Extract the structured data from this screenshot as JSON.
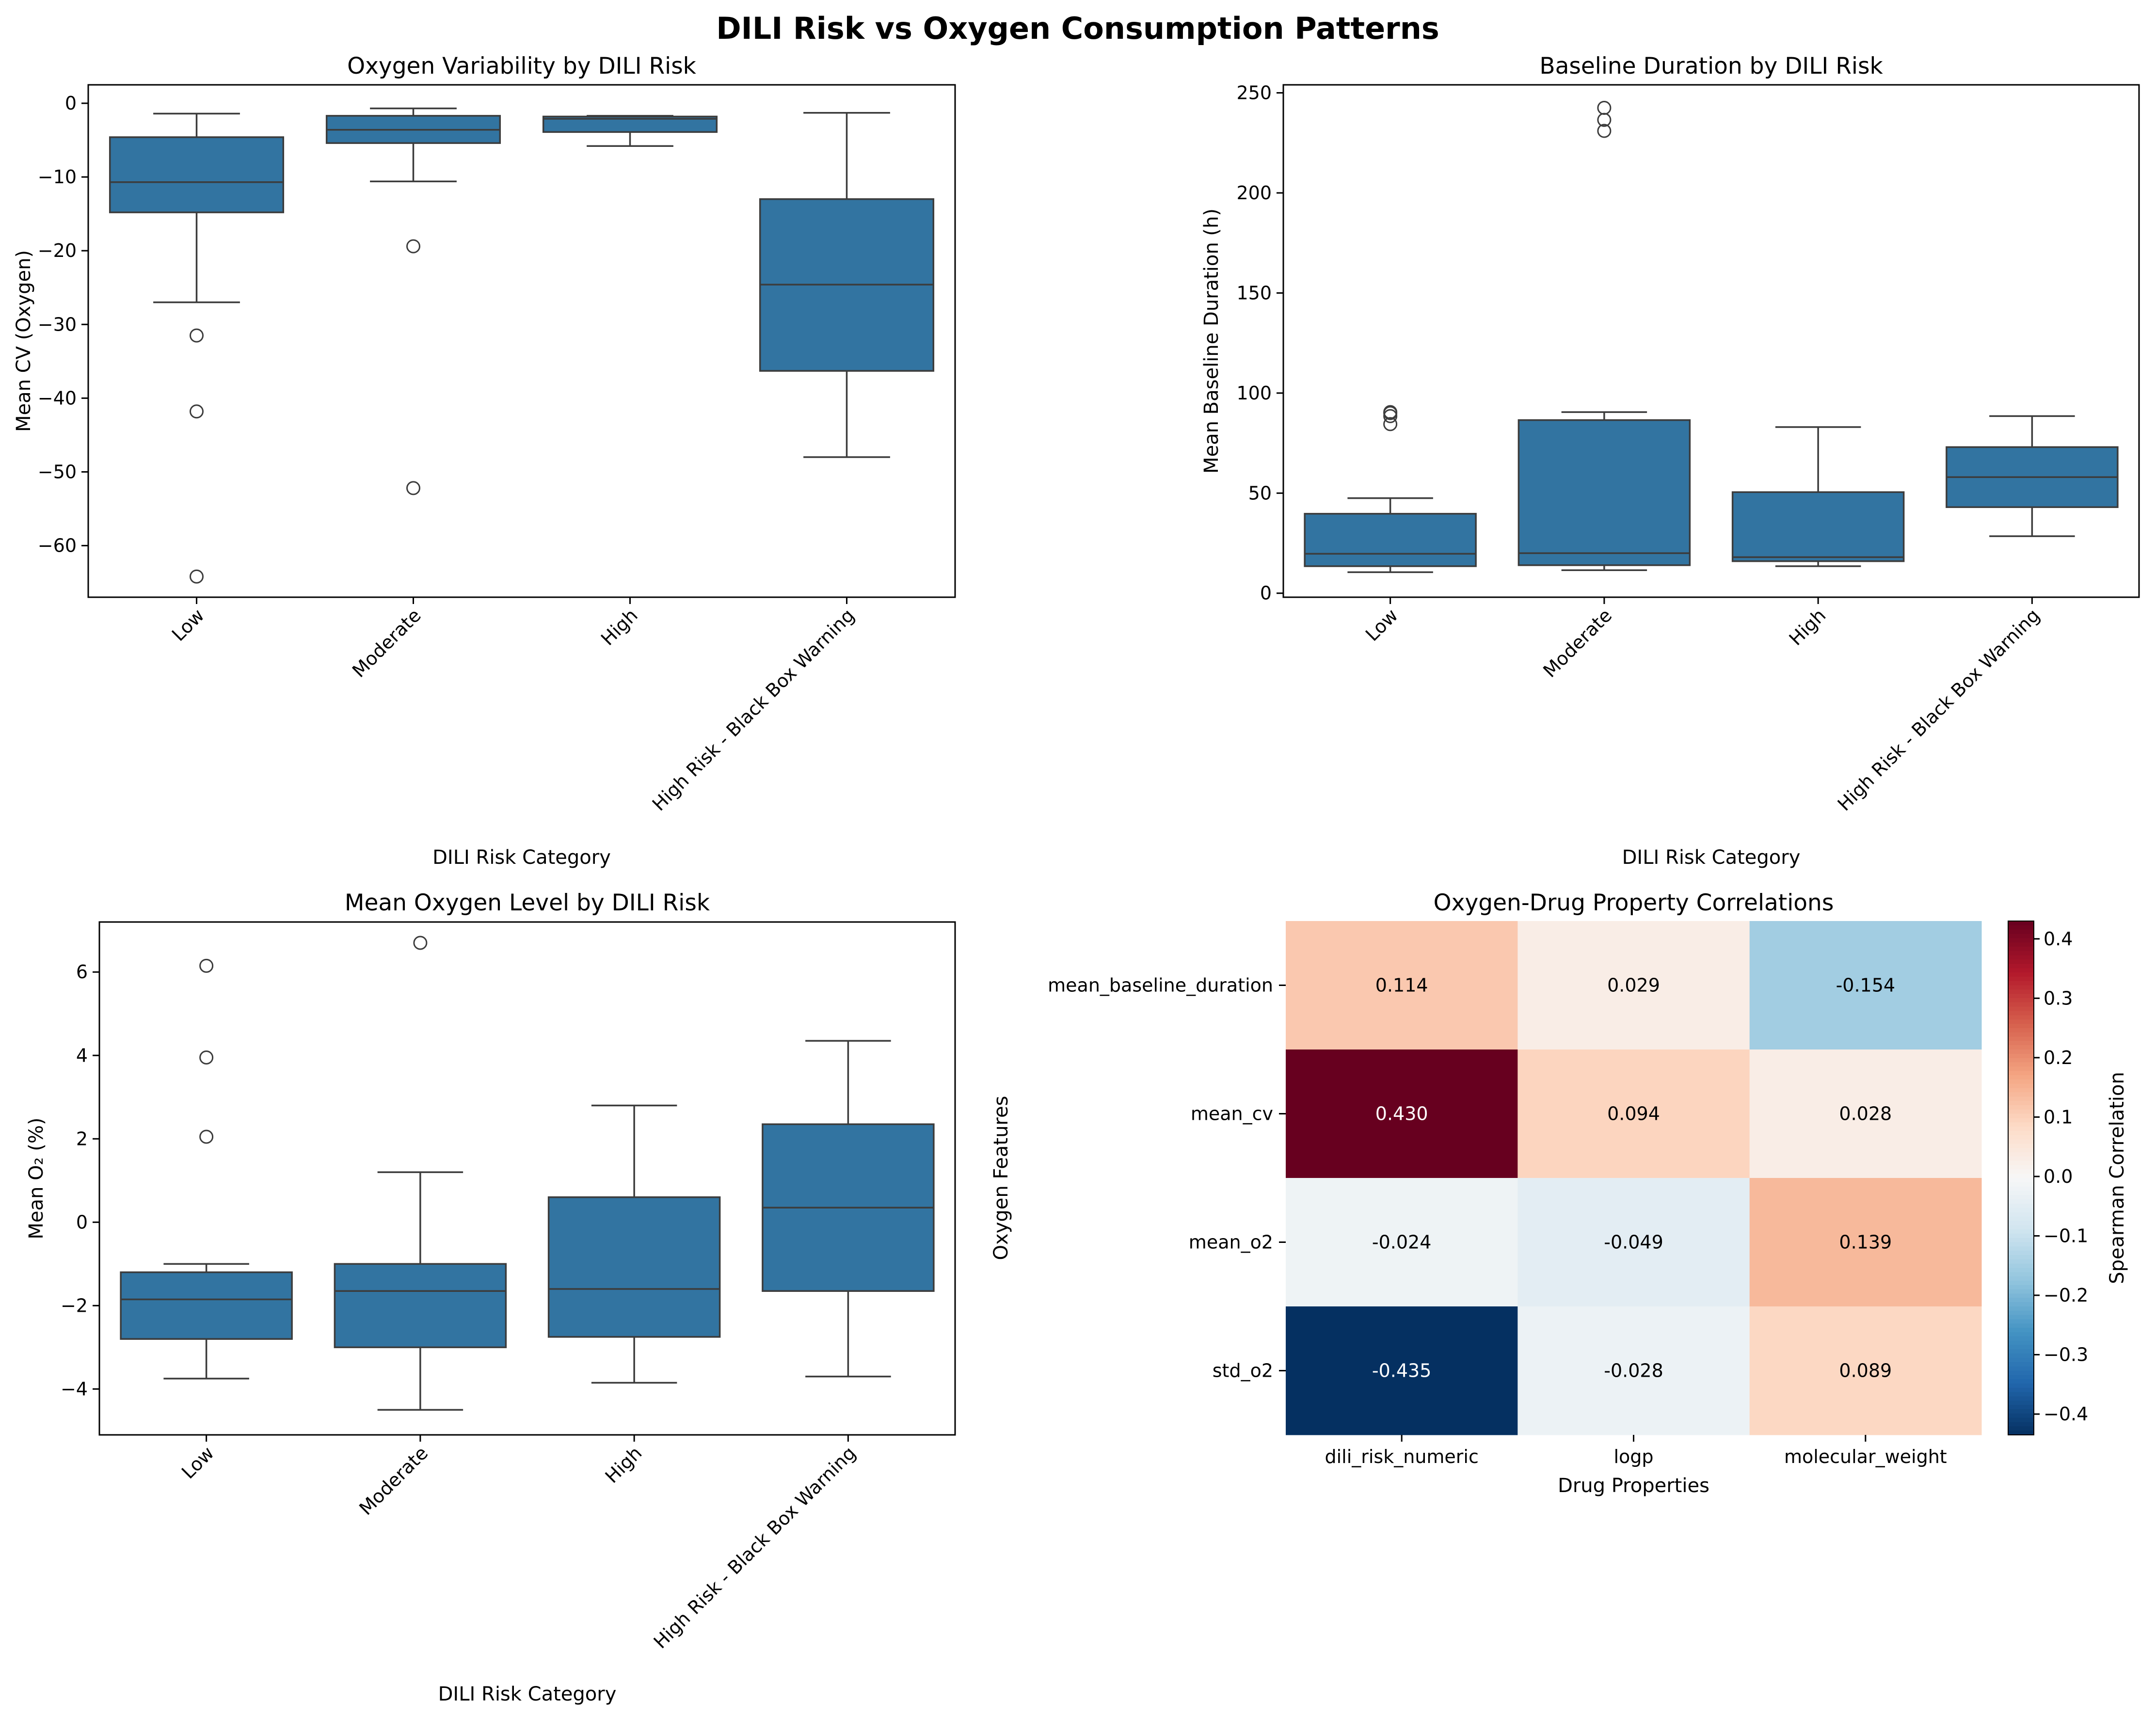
{
  "title": "DILI Risk vs Oxygen Consumption Patterns",
  "colors": {
    "box_fill": "#3274a1",
    "line": "#3c3c3c",
    "text": "#000000"
  },
  "chart_data": [
    {
      "type": "box",
      "title": "Oxygen Variability by DILI Risk",
      "xlabel": "DILI Risk Category",
      "ylabel": "Mean CV (Oxygen)",
      "ylim": [
        -67,
        2.5
      ],
      "yticks": [
        0,
        -10,
        -20,
        -30,
        -40,
        -50,
        -60
      ],
      "categories": [
        "Low",
        "Moderate",
        "High",
        "High Risk - Black Box Warning"
      ],
      "boxes": [
        {
          "whislo": -27.0,
          "q1": -14.8,
          "med": -10.7,
          "q3": -4.6,
          "whishi": -1.4,
          "fliers": [
            -31.5,
            -41.8,
            -64.2
          ]
        },
        {
          "whislo": -10.6,
          "q1": -5.4,
          "med": -3.6,
          "q3": -1.7,
          "whishi": -0.7,
          "fliers": [
            -19.4,
            -52.2
          ]
        },
        {
          "whislo": -5.8,
          "q1": -3.9,
          "med": -2.1,
          "q3": -1.8,
          "whishi": -1.7,
          "fliers": []
        },
        {
          "whislo": -48.0,
          "q1": -36.3,
          "med": -24.6,
          "q3": -13.0,
          "whishi": -1.3,
          "fliers": []
        }
      ]
    },
    {
      "type": "box",
      "title": "Baseline Duration by DILI Risk",
      "xlabel": "DILI Risk Category",
      "ylabel": "Mean Baseline Duration (h)",
      "ylim": [
        -2,
        254
      ],
      "yticks": [
        0,
        50,
        100,
        150,
        200,
        250
      ],
      "categories": [
        "Low",
        "Moderate",
        "High",
        "High Risk - Black Box Warning"
      ],
      "boxes": [
        {
          "whislo": 10.5,
          "q1": 13.5,
          "med": 19.7,
          "q3": 39.7,
          "whishi": 47.5,
          "fliers": [
            84.5,
            88.5,
            90.0,
            90.5
          ]
        },
        {
          "whislo": 11.5,
          "q1": 14.0,
          "med": 20.0,
          "q3": 86.5,
          "whishi": 90.5,
          "fliers": [
            231.0,
            236.5,
            242.5
          ]
        },
        {
          "whislo": 13.5,
          "q1": 16.0,
          "med": 18.0,
          "q3": 50.5,
          "whishi": 83.0,
          "fliers": []
        },
        {
          "whislo": 28.5,
          "q1": 43.0,
          "med": 58.0,
          "q3": 73.0,
          "whishi": 88.5,
          "fliers": []
        }
      ]
    },
    {
      "type": "box",
      "title": "Mean Oxygen Level by DILI Risk",
      "xlabel": "DILI Risk Category",
      "ylabel": "Mean O₂ (%)",
      "ylim": [
        -5.1,
        7.2
      ],
      "yticks": [
        6,
        4,
        2,
        0,
        -2,
        -4
      ],
      "categories": [
        "Low",
        "Moderate",
        "High",
        "High Risk - Black Box Warning"
      ],
      "boxes": [
        {
          "whislo": -3.75,
          "q1": -2.8,
          "med": -1.85,
          "q3": -1.2,
          "whishi": -1.0,
          "fliers": [
            6.15,
            3.95,
            2.05
          ]
        },
        {
          "whislo": -4.5,
          "q1": -3.0,
          "med": -1.65,
          "q3": -1.0,
          "whishi": 1.2,
          "fliers": [
            6.7
          ]
        },
        {
          "whislo": -3.85,
          "q1": -2.75,
          "med": -1.6,
          "q3": 0.6,
          "whishi": 2.8,
          "fliers": []
        },
        {
          "whislo": -3.7,
          "q1": -1.65,
          "med": 0.35,
          "q3": 2.35,
          "whishi": 4.35,
          "fliers": []
        }
      ]
    },
    {
      "type": "heatmap",
      "title": "Oxygen-Drug Property Correlations",
      "xlabel": "Drug Properties",
      "ylabel": "Oxygen Features",
      "x": [
        "dili_risk_numeric",
        "logp",
        "molecular_weight"
      ],
      "y": [
        "mean_baseline_duration",
        "mean_cv",
        "mean_o2",
        "std_o2"
      ],
      "values": [
        [
          0.114,
          0.029,
          -0.154
        ],
        [
          0.43,
          0.094,
          0.028
        ],
        [
          -0.024,
          -0.049,
          0.139
        ],
        [
          -0.435,
          -0.028,
          0.089
        ]
      ],
      "labels": [
        [
          "0.114",
          "0.029",
          "-0.154"
        ],
        [
          "0.430",
          "0.094",
          "0.028"
        ],
        [
          "-0.024",
          "-0.049",
          "0.139"
        ],
        [
          "-0.435",
          "-0.028",
          "0.089"
        ]
      ],
      "colorbar": {
        "label": "Spearman Correlation",
        "range": [
          -0.435,
          0.43
        ],
        "ticks": [
          0.4,
          0.3,
          0.2,
          0.1,
          0.0,
          -0.1,
          -0.2,
          -0.3,
          -0.4
        ],
        "tick_labels": [
          "0.4",
          "0.3",
          "0.2",
          "0.1",
          "0.0",
          "−0.1",
          "−0.2",
          "−0.3",
          "−0.4"
        ]
      },
      "colormap": "RdBu_r"
    }
  ]
}
